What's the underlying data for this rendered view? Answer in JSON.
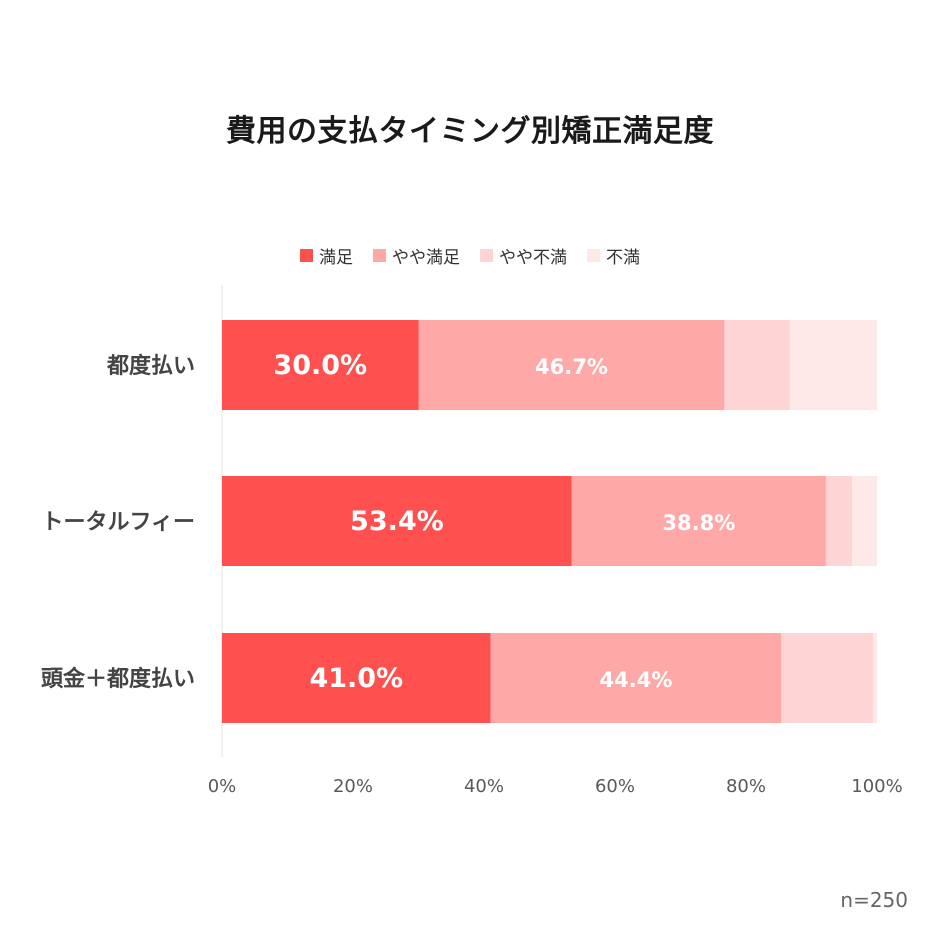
{
  "chart_data": {
    "type": "bar",
    "orientation": "horizontal",
    "stacked": true,
    "title": "費用の支払タイミング別矯正満足度",
    "categories": [
      "都度払い",
      "トータルフィー",
      "頭金＋都度払い"
    ],
    "series": [
      {
        "name": "満足",
        "values": [
          30.0,
          53.4,
          41.0
        ],
        "color": "#ff5050",
        "labels": [
          "30.0%",
          "53.4%",
          "41.0%"
        ]
      },
      {
        "name": "やや満足",
        "values": [
          46.7,
          38.8,
          44.4
        ],
        "color": "#ffa8a8",
        "labels": [
          "46.7%",
          "38.8%",
          "44.4%"
        ]
      },
      {
        "name": "やや不満",
        "values": [
          10.0,
          4.0,
          14.0
        ],
        "color": "#ffd4d4",
        "labels": [
          "",
          "",
          ""
        ]
      },
      {
        "name": "不満",
        "values": [
          13.3,
          3.8,
          0.6
        ],
        "color": "#ffe8e8",
        "labels": [
          "",
          "",
          ""
        ]
      }
    ],
    "xlim": [
      0,
      100
    ],
    "xticks": [
      "0%",
      "20%",
      "40%",
      "60%",
      "80%",
      "100%"
    ],
    "legend_position": "top",
    "grid": false
  },
  "footnote": "n=250"
}
